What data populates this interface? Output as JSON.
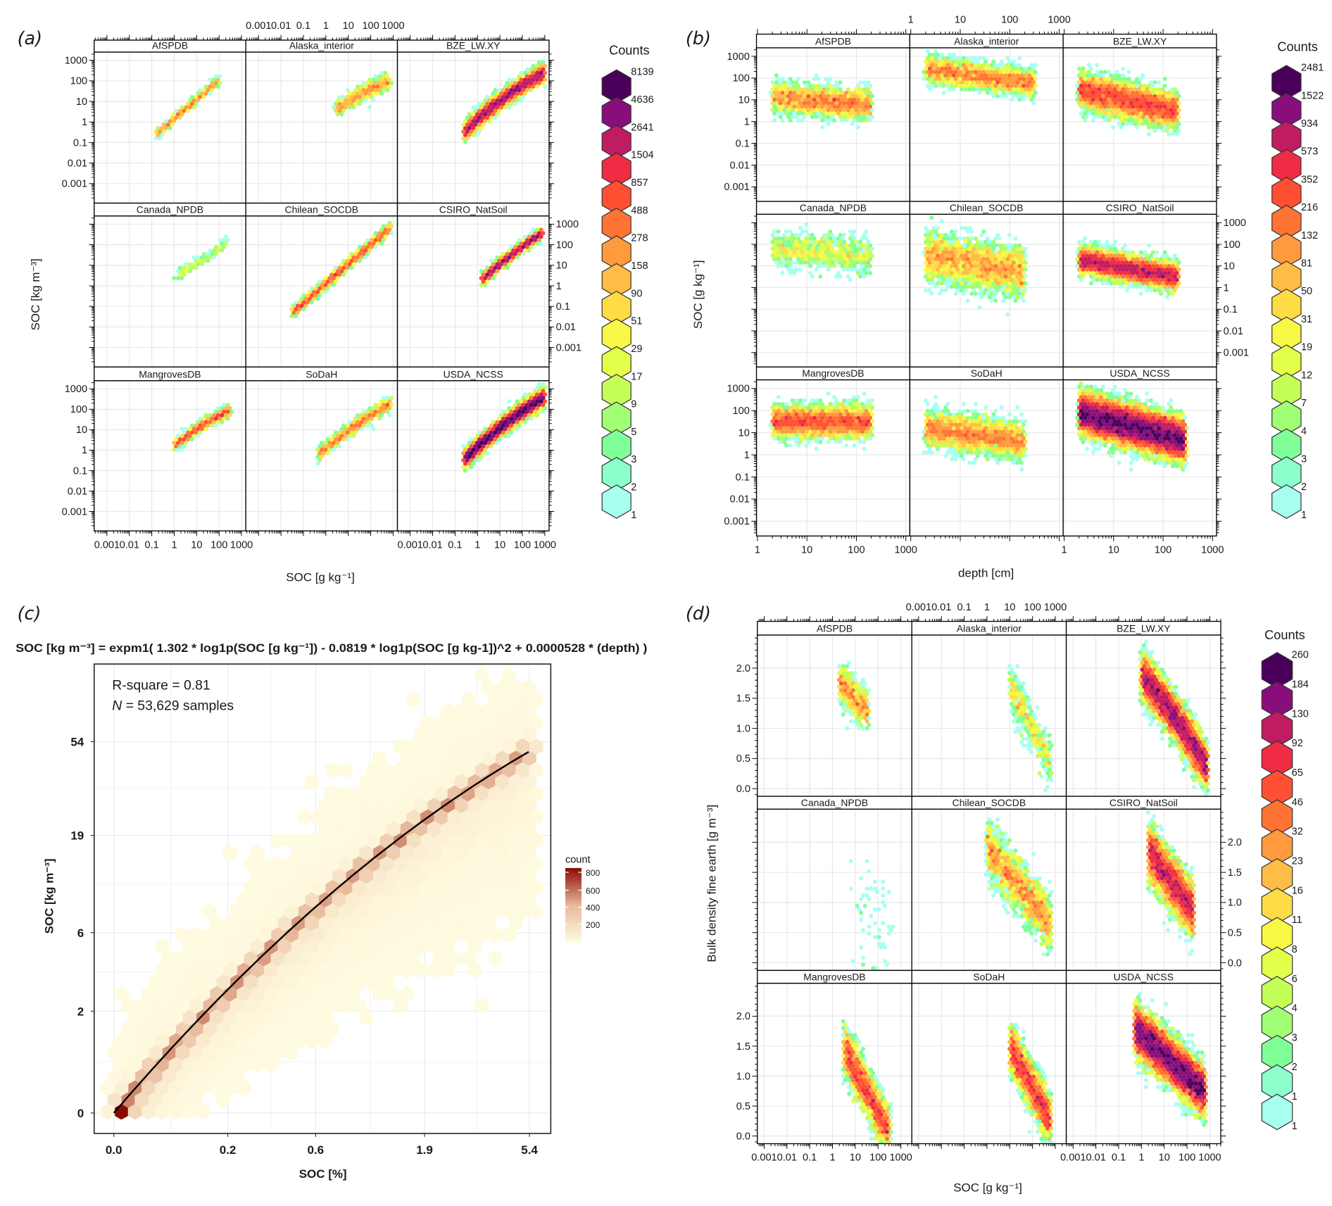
{
  "colors": {
    "counts_palette_light_to_dark": [
      "#a8fff0",
      "#8cffcc",
      "#80ff98",
      "#a0ff74",
      "#c4ff58",
      "#e4ff4a",
      "#f8f846",
      "#ffdc46",
      "#ffbc46",
      "#ff9a3e",
      "#ff7434",
      "#ff5034",
      "#f02c44",
      "#c01c62",
      "#880e7c",
      "#4a005a"
    ],
    "count_gradient": [
      "#fffbe0",
      "#e8b89a",
      "#8b0a00"
    ],
    "fit_line": "#000000"
  },
  "chart_data": [
    {
      "panel_label": "(a)",
      "type": "heatmap",
      "subtype": "hexbin lattice",
      "panels": [
        "AfSPDB",
        "Alaska_interior",
        "BZE_LW.XY",
        "Canada_NPDB",
        "Chilean_SOCDB",
        "CSIRO_NatSoil",
        "MangrovesDB",
        "SoDaH",
        "USDA_NCSS"
      ],
      "x_scale": "log10",
      "y_scale": "log10",
      "x_ticks": [
        "0.001",
        "0.01",
        "0.1",
        "1",
        "10",
        "100",
        "1000"
      ],
      "y_ticks": [
        "0.001",
        "0.01",
        "0.1",
        "1",
        "10",
        "100",
        "1000"
      ],
      "xlabel": "SOC [g kg⁻¹]",
      "ylabel": "SOC [kg m⁻³]",
      "grid": true,
      "legend_title": "Counts",
      "legend_placement": "right",
      "legend_values": [
        "8139",
        "4636",
        "2641",
        "1504",
        "857",
        "488",
        "278",
        "158",
        "90",
        "51",
        "29",
        "17",
        "9",
        "5",
        "3",
        "2",
        "1"
      ]
    },
    {
      "panel_label": "(b)",
      "type": "heatmap",
      "subtype": "hexbin lattice",
      "panels": [
        "AfSPDB",
        "Alaska_interior",
        "BZE_LW.XY",
        "Canada_NPDB",
        "Chilean_SOCDB",
        "CSIRO_NatSoil",
        "MangrovesDB",
        "SoDaH",
        "USDA_NCSS"
      ],
      "x_scale": "log10",
      "y_scale": "log10",
      "x_ticks": [
        "1",
        "10",
        "100",
        "1000"
      ],
      "y_ticks": [
        "0.001",
        "0.01",
        "0.1",
        "1",
        "10",
        "100",
        "1000"
      ],
      "xlabel": "depth [cm]",
      "ylabel": "SOC [g kg⁻¹]",
      "grid": true,
      "legend_title": "Counts",
      "legend_placement": "right",
      "legend_values": [
        "2481",
        "1522",
        "934",
        "573",
        "352",
        "216",
        "132",
        "81",
        "50",
        "31",
        "19",
        "12",
        "7",
        "4",
        "3",
        "2",
        "1"
      ]
    },
    {
      "panel_label": "(c)",
      "type": "heatmap",
      "subtype": "hexbin with fitted curve",
      "equation": "SOC [kg m⁻³] = expm1( 1.302 * log1p(SOC [g kg⁻¹]) - 0.0819 * log1p(SOC [g kg-1])^2 + 0.0000528 * (depth) )",
      "fit": {
        "a": 1.302,
        "b": -0.0819,
        "c": 5.28e-05
      },
      "r_square_text": "R-square = 0.81",
      "n_symbol": "N",
      "n_text": " = 53,629 samples",
      "x_scale": "log1p",
      "y_scale": "log1p",
      "x_ticks": [
        "0.0",
        "0.2",
        "0.6",
        "1.9",
        "5.4"
      ],
      "y_ticks": [
        "0",
        "2",
        "6",
        "19",
        "54"
      ],
      "xlabel": "SOC [%]",
      "ylabel": "SOC [kg m⁻³]",
      "grid": true,
      "legend_title": "count",
      "legend_placement": "right",
      "legend_ticks": [
        "800",
        "600",
        "400",
        "200"
      ]
    },
    {
      "panel_label": "(d)",
      "type": "heatmap",
      "subtype": "hexbin lattice",
      "panels": [
        "AfSPDB",
        "Alaska_interior",
        "BZE_LW.XY",
        "Canada_NPDB",
        "Chilean_SOCDB",
        "CSIRO_NatSoil",
        "MangrovesDB",
        "SoDaH",
        "USDA_NCSS"
      ],
      "x_scale": "log10",
      "y_scale": "linear",
      "x_ticks": [
        "0.001",
        "0.01",
        "0.1",
        "1",
        "10",
        "100",
        "1000"
      ],
      "y_ticks": [
        "0.0",
        "0.5",
        "1.0",
        "1.5",
        "2.0"
      ],
      "xlabel": "SOC [g kg⁻¹]",
      "ylabel": "Bulk density fine earth [g m⁻³]",
      "grid": true,
      "legend_title": "Counts",
      "legend_placement": "right",
      "legend_values": [
        "260",
        "184",
        "130",
        "92",
        "65",
        "46",
        "32",
        "23",
        "16",
        "11",
        "8",
        "6",
        "4",
        "3",
        "2",
        "1",
        "1"
      ]
    }
  ]
}
